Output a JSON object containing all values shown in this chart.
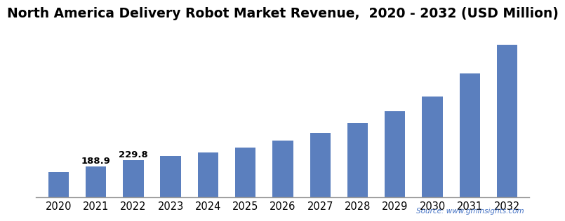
{
  "title": "North America Delivery Robot Market Revenue,  2020 - 2032 (USD Million)",
  "categories": [
    "2020",
    "2021",
    "2022",
    "2023",
    "2024",
    "2025",
    "2026",
    "2027",
    "2028",
    "2029",
    "2030",
    "2031",
    "2032"
  ],
  "values": [
    155.0,
    188.9,
    229.8,
    255.0,
    278.0,
    305.0,
    348.0,
    395.0,
    455.0,
    530.0,
    620.0,
    760.0,
    940.0
  ],
  "bar_color": "#5b7fbe",
  "bar_labels": [
    "",
    "188.9",
    "229.8",
    "",
    "",
    "",
    "",
    "",
    "",
    "",
    "",
    "",
    ""
  ],
  "label_fontsize": 9.5,
  "title_fontsize": 13.5,
  "tick_fontsize": 10.5,
  "source_text": "Source: www.gminsights.com",
  "background_color": "#ffffff",
  "ylim": [
    0,
    1050
  ]
}
